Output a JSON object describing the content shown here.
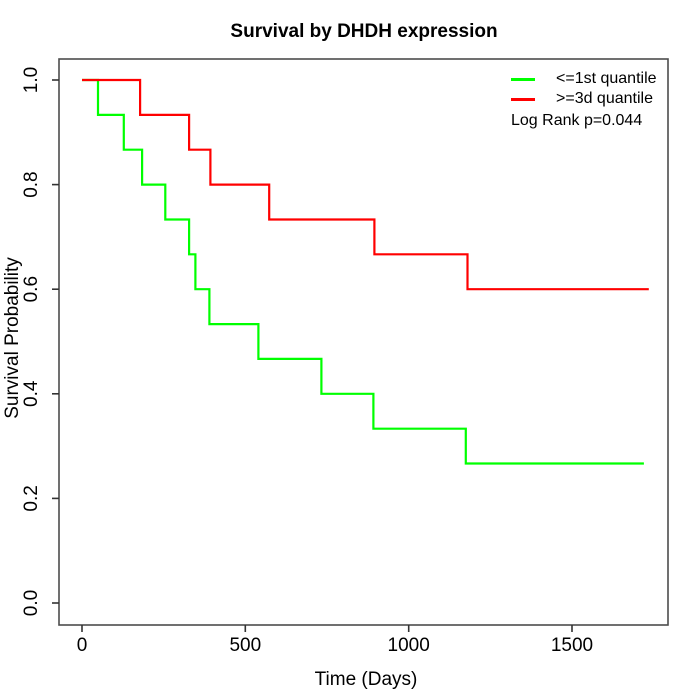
{
  "title": "Survival by DHDH expression",
  "axes": {
    "xlabel": "Time (Days)",
    "ylabel": "Survival Probability",
    "x_ticks": [
      {
        "v": 0,
        "label": "0"
      },
      {
        "v": 500,
        "label": "500"
      },
      {
        "v": 1000,
        "label": "1000"
      },
      {
        "v": 1500,
        "label": "1500"
      }
    ],
    "y_ticks": [
      {
        "v": 0.0,
        "label": "0.0"
      },
      {
        "v": 0.2,
        "label": "0.2"
      },
      {
        "v": 0.4,
        "label": "0.4"
      },
      {
        "v": 0.6,
        "label": "0.6"
      },
      {
        "v": 0.8,
        "label": "0.8"
      },
      {
        "v": 1.0,
        "label": "1.0"
      }
    ]
  },
  "legend": {
    "items": [
      {
        "label": "<=1st quantile",
        "color": "#00ff00"
      },
      {
        "label": ">=3d quantile",
        "color": "#ff0000"
      }
    ],
    "note": "Log Rank p=0.044"
  },
  "colors": {
    "curve_low": "#00ff00",
    "curve_high": "#ff0000",
    "box": "#4d4d4d",
    "tick": "#333333",
    "text": "#000000"
  },
  "chart_data": {
    "type": "line",
    "subtype": "kaplan-meier-step",
    "title": "Survival by DHDH expression",
    "xlabel": "Time (Days)",
    "ylabel": "Survival Probability",
    "xlim": [
      0,
      1750
    ],
    "ylim": [
      0.0,
      1.0
    ],
    "x_tick_values": [
      0,
      500,
      1000,
      1500
    ],
    "y_tick_values": [
      0.0,
      0.2,
      0.4,
      0.6,
      0.8,
      1.0
    ],
    "grid": false,
    "legend_position": "top-right",
    "annotation": "Log Rank p=0.044",
    "series": [
      {
        "name": "<=1st quantile",
        "color": "#00ff00",
        "start": [
          0,
          1.0
        ],
        "events": [
          [
            49,
            0.9333
          ],
          [
            128,
            0.8667
          ],
          [
            184,
            0.8
          ],
          [
            255,
            0.7333
          ],
          [
            328,
            0.6667
          ],
          [
            347,
            0.6
          ],
          [
            390,
            0.5333
          ],
          [
            540,
            0.4667
          ],
          [
            733,
            0.4
          ],
          [
            892,
            0.3333
          ],
          [
            1175,
            0.2667
          ]
        ],
        "end_time": 1720
      },
      {
        "name": ">=3d quantile",
        "color": "#ff0000",
        "start": [
          0,
          1.0
        ],
        "events": [
          [
            178,
            0.9333
          ],
          [
            328,
            0.8667
          ],
          [
            393,
            0.8
          ],
          [
            573,
            0.7333
          ],
          [
            895,
            0.6667
          ],
          [
            1180,
            0.6
          ]
        ],
        "end_time": 1735
      }
    ]
  }
}
